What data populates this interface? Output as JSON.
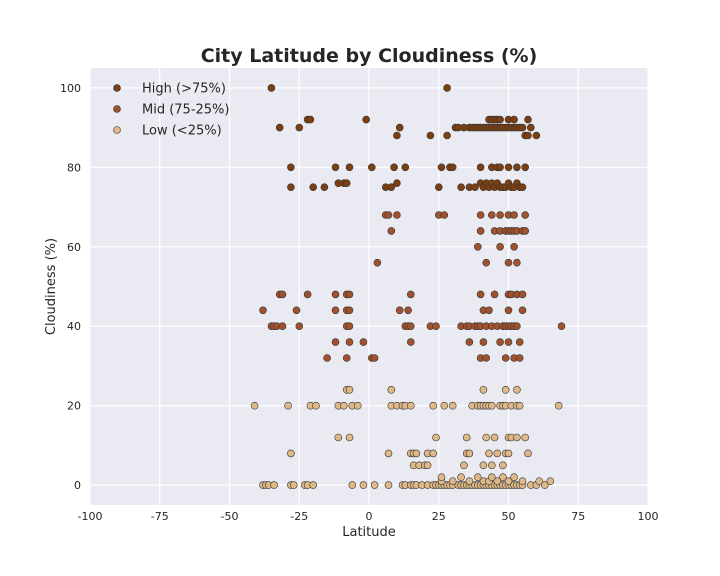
{
  "chart_data": {
    "type": "scatter",
    "title": "City Latitude by Cloudiness (%)",
    "xlabel": "Latitude",
    "ylabel": "Cloudiness (%)",
    "xlim": [
      -100,
      100
    ],
    "ylim": [
      -5,
      105
    ],
    "xticks": [
      -100,
      -75,
      -50,
      -25,
      0,
      25,
      50,
      75,
      100
    ],
    "yticks": [
      0,
      20,
      40,
      60,
      80,
      100
    ],
    "grid": true,
    "legend_position": "top-left",
    "background": "#eaeaf2",
    "series": [
      {
        "name": "High (>75%)",
        "color": "#7b3f12",
        "points": [
          [
            -35,
            100
          ],
          [
            28,
            100
          ],
          [
            -32,
            90
          ],
          [
            -25,
            90
          ],
          [
            -22,
            92
          ],
          [
            -21,
            92
          ],
          [
            -1,
            92
          ],
          [
            10,
            88
          ],
          [
            11,
            90
          ],
          [
            22,
            88
          ],
          [
            28,
            88
          ],
          [
            31,
            90
          ],
          [
            32,
            90
          ],
          [
            34,
            90
          ],
          [
            36,
            90
          ],
          [
            37,
            90
          ],
          [
            38,
            90
          ],
          [
            39,
            90
          ],
          [
            40,
            90
          ],
          [
            41,
            90
          ],
          [
            42,
            90
          ],
          [
            43,
            90
          ],
          [
            44,
            90
          ],
          [
            45,
            90
          ],
          [
            46,
            90
          ],
          [
            47,
            90
          ],
          [
            48,
            90
          ],
          [
            49,
            90
          ],
          [
            50,
            90
          ],
          [
            51,
            90
          ],
          [
            52,
            90
          ],
          [
            53,
            90
          ],
          [
            54,
            90
          ],
          [
            55,
            90
          ],
          [
            56,
            88
          ],
          [
            57,
            88
          ],
          [
            58,
            90
          ],
          [
            60,
            88
          ],
          [
            43,
            92
          ],
          [
            44,
            92
          ],
          [
            45,
            92
          ],
          [
            46,
            92
          ],
          [
            47,
            92
          ],
          [
            50,
            92
          ],
          [
            52,
            92
          ],
          [
            57,
            92
          ],
          [
            -28,
            80
          ],
          [
            -12,
            80
          ],
          [
            -7,
            80
          ],
          [
            1,
            80
          ],
          [
            9,
            80
          ],
          [
            13,
            80
          ],
          [
            26,
            80
          ],
          [
            29,
            80
          ],
          [
            30,
            80
          ],
          [
            40,
            80
          ],
          [
            44,
            80
          ],
          [
            46,
            80
          ],
          [
            47,
            80
          ],
          [
            50,
            80
          ],
          [
            53,
            80
          ],
          [
            56,
            80
          ],
          [
            -28,
            75
          ],
          [
            -20,
            75
          ],
          [
            -16,
            75
          ],
          [
            -11,
            76
          ],
          [
            -9,
            76
          ],
          [
            -8,
            76
          ],
          [
            6,
            75
          ],
          [
            8,
            75
          ],
          [
            10,
            76
          ],
          [
            25,
            75
          ],
          [
            33,
            75
          ],
          [
            36,
            75
          ],
          [
            38,
            75
          ],
          [
            40,
            76
          ],
          [
            41,
            75
          ],
          [
            42,
            76
          ],
          [
            43,
            75
          ],
          [
            44,
            76
          ],
          [
            45,
            75
          ],
          [
            46,
            76
          ],
          [
            47,
            75
          ],
          [
            48,
            75
          ],
          [
            49,
            75
          ],
          [
            50,
            76
          ],
          [
            51,
            75
          ],
          [
            52,
            75
          ],
          [
            53,
            76
          ],
          [
            54,
            75
          ],
          [
            55,
            75
          ]
        ]
      },
      {
        "name": "Mid (75-25%)",
        "color": "#a0522d",
        "points": [
          [
            6,
            68
          ],
          [
            7,
            68
          ],
          [
            10,
            68
          ],
          [
            25,
            68
          ],
          [
            27,
            68
          ],
          [
            40,
            68
          ],
          [
            44,
            68
          ],
          [
            47,
            68
          ],
          [
            50,
            68
          ],
          [
            52,
            68
          ],
          [
            56,
            68
          ],
          [
            8,
            64
          ],
          [
            40,
            64
          ],
          [
            45,
            64
          ],
          [
            47,
            64
          ],
          [
            49,
            64
          ],
          [
            50,
            64
          ],
          [
            51,
            64
          ],
          [
            52,
            64
          ],
          [
            53,
            64
          ],
          [
            55,
            64
          ],
          [
            56,
            64
          ],
          [
            39,
            60
          ],
          [
            47,
            60
          ],
          [
            52,
            60
          ],
          [
            3,
            56
          ],
          [
            42,
            56
          ],
          [
            50,
            56
          ],
          [
            53,
            56
          ],
          [
            -32,
            48
          ],
          [
            -31,
            48
          ],
          [
            -22,
            48
          ],
          [
            -12,
            48
          ],
          [
            -8,
            48
          ],
          [
            -7,
            48
          ],
          [
            15,
            48
          ],
          [
            40,
            48
          ],
          [
            45,
            48
          ],
          [
            50,
            48
          ],
          [
            51,
            48
          ],
          [
            53,
            48
          ],
          [
            55,
            48
          ],
          [
            -38,
            44
          ],
          [
            -26,
            44
          ],
          [
            -12,
            44
          ],
          [
            -8,
            44
          ],
          [
            -7,
            44
          ],
          [
            11,
            44
          ],
          [
            14,
            44
          ],
          [
            41,
            44
          ],
          [
            43,
            44
          ],
          [
            50,
            44
          ],
          [
            55,
            44
          ],
          [
            -35,
            40
          ],
          [
            -34,
            40
          ],
          [
            -33,
            40
          ],
          [
            -31,
            40
          ],
          [
            -25,
            40
          ],
          [
            -8,
            40
          ],
          [
            -7,
            40
          ],
          [
            13,
            40
          ],
          [
            14,
            40
          ],
          [
            15,
            40
          ],
          [
            22,
            40
          ],
          [
            24,
            40
          ],
          [
            33,
            40
          ],
          [
            35,
            40
          ],
          [
            36,
            40
          ],
          [
            38,
            40
          ],
          [
            39,
            40
          ],
          [
            40,
            40
          ],
          [
            42,
            40
          ],
          [
            44,
            40
          ],
          [
            46,
            40
          ],
          [
            48,
            40
          ],
          [
            49,
            40
          ],
          [
            50,
            40
          ],
          [
            51,
            40
          ],
          [
            52,
            40
          ],
          [
            53,
            40
          ],
          [
            69,
            40
          ],
          [
            -12,
            36
          ],
          [
            -7,
            36
          ],
          [
            -2,
            36
          ],
          [
            15,
            36
          ],
          [
            36,
            36
          ],
          [
            41,
            36
          ],
          [
            47,
            36
          ],
          [
            50,
            36
          ],
          [
            54,
            36
          ],
          [
            -15,
            32
          ],
          [
            -8,
            32
          ],
          [
            1,
            32
          ],
          [
            2,
            32
          ],
          [
            40,
            32
          ],
          [
            42,
            32
          ],
          [
            49,
            32
          ],
          [
            52,
            32
          ],
          [
            54,
            32
          ]
        ]
      },
      {
        "name": "Low (<25%)",
        "color": "#deb887",
        "points": [
          [
            -8,
            24
          ],
          [
            -7,
            24
          ],
          [
            8,
            24
          ],
          [
            41,
            24
          ],
          [
            49,
            24
          ],
          [
            53,
            24
          ],
          [
            -41,
            20
          ],
          [
            -29,
            20
          ],
          [
            -21,
            20
          ],
          [
            -19,
            20
          ],
          [
            -11,
            20
          ],
          [
            -9,
            20
          ],
          [
            -6,
            20
          ],
          [
            -4,
            20
          ],
          [
            8,
            20
          ],
          [
            10,
            20
          ],
          [
            12,
            20
          ],
          [
            13,
            20
          ],
          [
            15,
            20
          ],
          [
            23,
            20
          ],
          [
            27,
            20
          ],
          [
            30,
            20
          ],
          [
            37,
            20
          ],
          [
            39,
            20
          ],
          [
            40,
            20
          ],
          [
            41,
            20
          ],
          [
            42,
            20
          ],
          [
            43,
            20
          ],
          [
            44,
            20
          ],
          [
            47,
            20
          ],
          [
            48,
            20
          ],
          [
            49,
            20
          ],
          [
            51,
            20
          ],
          [
            53,
            20
          ],
          [
            54,
            20
          ],
          [
            68,
            20
          ],
          [
            -11,
            12
          ],
          [
            -7,
            12
          ],
          [
            24,
            12
          ],
          [
            35,
            12
          ],
          [
            42,
            12
          ],
          [
            45,
            12
          ],
          [
            50,
            12
          ],
          [
            51,
            12
          ],
          [
            53,
            12
          ],
          [
            56,
            12
          ],
          [
            -28,
            8
          ],
          [
            7,
            8
          ],
          [
            15,
            8
          ],
          [
            16,
            8
          ],
          [
            17,
            8
          ],
          [
            21,
            8
          ],
          [
            23,
            8
          ],
          [
            35,
            8
          ],
          [
            36,
            8
          ],
          [
            43,
            8
          ],
          [
            46,
            8
          ],
          [
            49,
            8
          ],
          [
            50,
            8
          ],
          [
            57,
            8
          ],
          [
            16,
            5
          ],
          [
            18,
            5
          ],
          [
            20,
            5
          ],
          [
            21,
            5
          ],
          [
            34,
            5
          ],
          [
            41,
            5
          ],
          [
            44,
            5
          ],
          [
            48,
            5
          ],
          [
            -38,
            0
          ],
          [
            -37,
            0
          ],
          [
            -36,
            0
          ],
          [
            -34,
            0
          ],
          [
            -28,
            0
          ],
          [
            -27,
            0
          ],
          [
            -23,
            0
          ],
          [
            -22,
            0
          ],
          [
            -20,
            0
          ],
          [
            -6,
            0
          ],
          [
            -2,
            0
          ],
          [
            2,
            0
          ],
          [
            7,
            0
          ],
          [
            12,
            0
          ],
          [
            13,
            0
          ],
          [
            15,
            0
          ],
          [
            16,
            0
          ],
          [
            17,
            0
          ],
          [
            19,
            0
          ],
          [
            21,
            0
          ],
          [
            23,
            0
          ],
          [
            24,
            0
          ],
          [
            25,
            0
          ],
          [
            26,
            0
          ],
          [
            27,
            0
          ],
          [
            28,
            0
          ],
          [
            29,
            0
          ],
          [
            30,
            0
          ],
          [
            32,
            0
          ],
          [
            33,
            0
          ],
          [
            34,
            0
          ],
          [
            35,
            0
          ],
          [
            36,
            0
          ],
          [
            37,
            0
          ],
          [
            38,
            0
          ],
          [
            39,
            0
          ],
          [
            40,
            0
          ],
          [
            41,
            0
          ],
          [
            42,
            0
          ],
          [
            43,
            0
          ],
          [
            44,
            0
          ],
          [
            45,
            0
          ],
          [
            46,
            0
          ],
          [
            47,
            0
          ],
          [
            48,
            0
          ],
          [
            49,
            0
          ],
          [
            50,
            0
          ],
          [
            51,
            0
          ],
          [
            52,
            0
          ],
          [
            53,
            0
          ],
          [
            54,
            0
          ],
          [
            55,
            0
          ],
          [
            58,
            0
          ],
          [
            60,
            0
          ],
          [
            63,
            0
          ],
          [
            26,
            1
          ],
          [
            30,
            1
          ],
          [
            36,
            1
          ],
          [
            41,
            1
          ],
          [
            43,
            1
          ],
          [
            46,
            1
          ],
          [
            50,
            1
          ],
          [
            55,
            1
          ],
          [
            61,
            1
          ],
          [
            65,
            1
          ],
          [
            26,
            2
          ],
          [
            33,
            2
          ],
          [
            39,
            2
          ],
          [
            44,
            2
          ],
          [
            48,
            2
          ],
          [
            52,
            2
          ]
        ]
      }
    ]
  }
}
